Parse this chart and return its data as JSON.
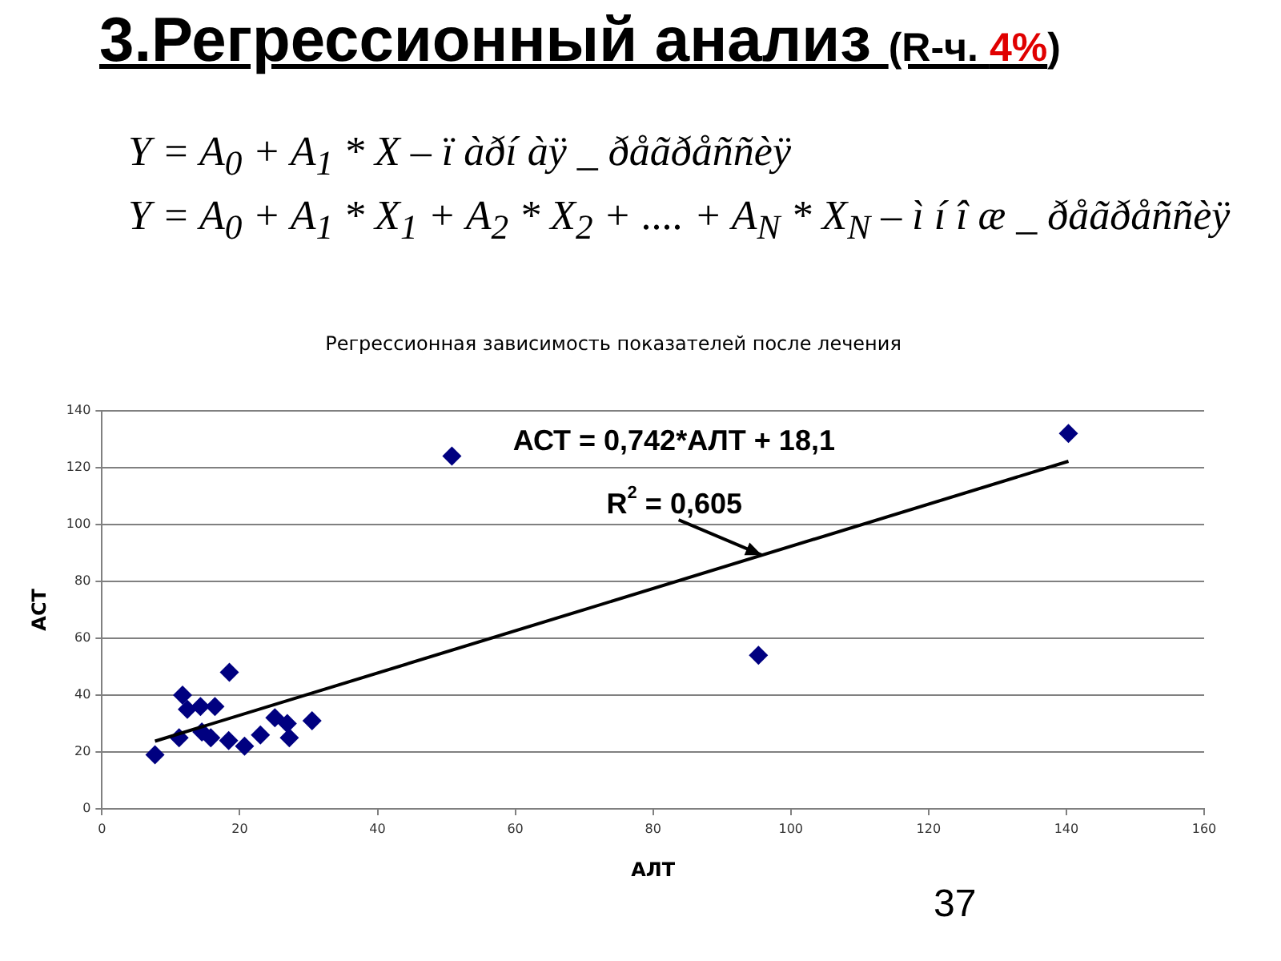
{
  "chart_data": {
    "type": "scatter",
    "title": "3.Регрессионный анализ (R-ч. 4%)",
    "subtitle": "Регрессионная зависимость показателей после лечения",
    "xlabel": "АЛТ",
    "ylabel": "АСТ",
    "xlim": [
      0,
      160
    ],
    "xticks": [
      0,
      20,
      40,
      60,
      80,
      100,
      120,
      140,
      160
    ],
    "ylim": [
      0,
      140
    ],
    "yticks": [
      0,
      20,
      40,
      60,
      80,
      100,
      120,
      140
    ],
    "grid": "y",
    "marker": "diamond",
    "series": [
      {
        "type": "scatter",
        "color": "#000080",
        "x": [
          7.7,
          11.2,
          11.7,
          12.4,
          14.3,
          14.5,
          15.8,
          16.4,
          18.4,
          18.5,
          20.7,
          23.0,
          25.1,
          26.9,
          27.2,
          30.5,
          50.8,
          95.3,
          140.3
        ],
        "values": [
          19,
          25,
          40,
          35,
          36,
          27,
          25,
          36,
          24,
          48,
          22,
          26,
          32,
          30,
          25,
          31,
          124,
          54,
          132
        ]
      },
      {
        "type": "line",
        "color": "#000000",
        "marker": "none",
        "x": [
          7.7,
          140.3
        ],
        "values": [
          23.8,
          122.2
        ]
      }
    ],
    "annotations": [
      "Y = A$_{0}$ + A$_{1}$ * X – ï àðí àÿ _ ðåãðåññèÿ",
      "Y = A$_{0}$ + A$_{1}$ * X$_{1}$ + A$_{2}$ * X$_{2}$ + .... + A$_{N}$ * X$_{N}$ – ì í î æ _ ðåãðåññèÿ",
      "АСТ = 0,742*АЛТ + 18,1",
      {
        "text": "R$^{2}$ = 0,605",
        "x": 95.8,
        "y": 89.2
      },
      "37"
    ]
  }
}
